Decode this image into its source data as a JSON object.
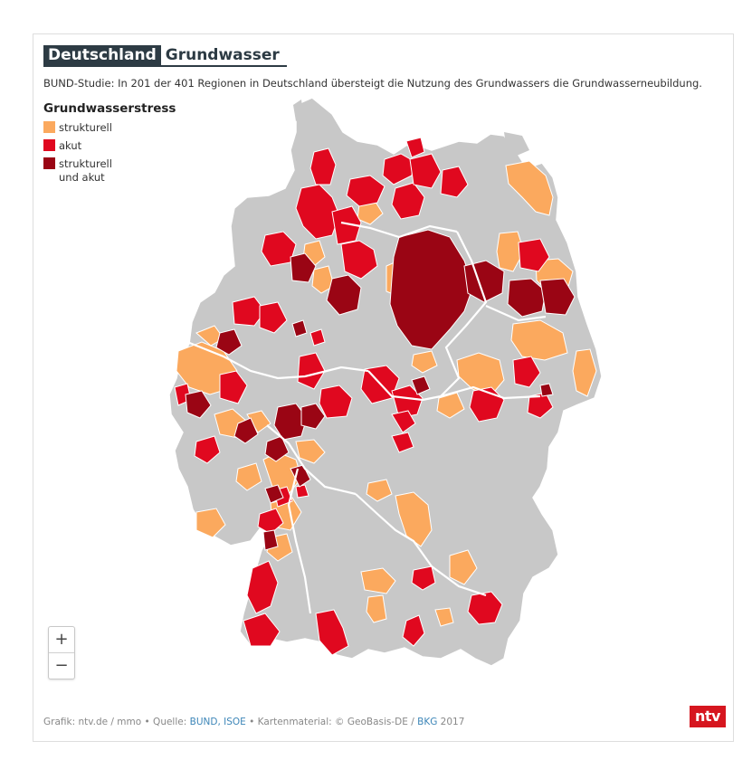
{
  "header": {
    "title_country": "Deutschland",
    "title_topic": "Grundwasser",
    "subtitle": "BUND-Studie: In 201 der 401 Regionen in Deutschland übersteigt die Nutzung des Grundwassers die Grundwasserneubildung."
  },
  "legend": {
    "title": "Grundwasserstress",
    "items": [
      {
        "label": "strukturell",
        "color": "#fba95e"
      },
      {
        "label": "akut",
        "color": "#e0081f"
      },
      {
        "label": "strukturell und akut",
        "color": "#9a0514"
      }
    ]
  },
  "map": {
    "base_color": "#c8c8c8",
    "border_color": "#ffffff"
  },
  "zoom": {
    "in_label": "+",
    "out_label": "−"
  },
  "footer": {
    "prefix": "Grafik: ntv.de / mmo • Quelle: ",
    "source_link": "BUND, ISOE",
    "middle": " • Kartenmaterial: © GeoBasis-DE / ",
    "map_link": "BKG",
    "suffix": " 2017"
  },
  "logo": {
    "text": "ntv"
  }
}
